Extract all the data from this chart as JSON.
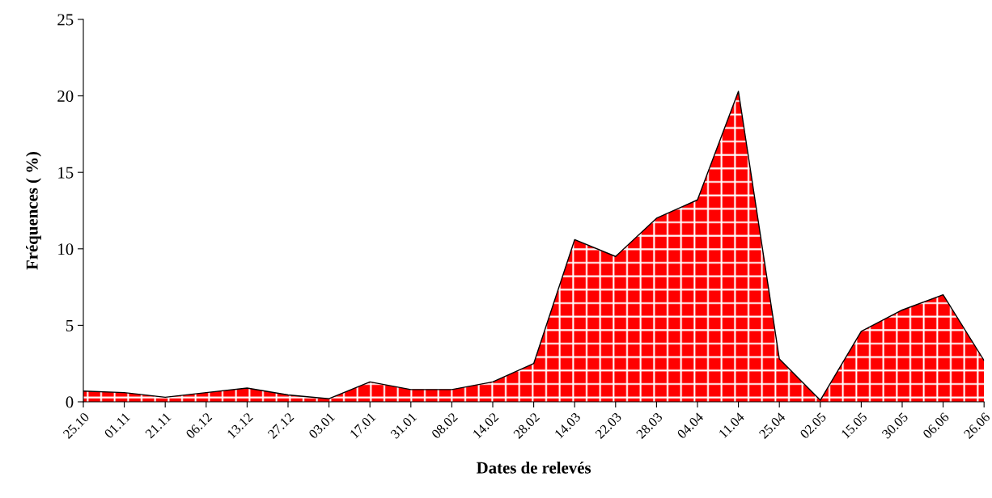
{
  "chart_data": {
    "type": "area",
    "xlabel": "Dates de relevés",
    "ylabel": "Fréquences ( %)",
    "categories": [
      "25.10",
      "01.11",
      "21.11",
      "06.12",
      "13.12",
      "27.12",
      "03.01",
      "17.01",
      "31.01",
      "08.02",
      "14.02",
      "28.02",
      "14.03",
      "22.03",
      "28.03",
      "04.04",
      "11.04",
      "25.04",
      "02.05",
      "15.05",
      "30.05",
      "06.06",
      "26.06"
    ],
    "series": [
      {
        "color": "#ff0000",
        "values": [
          0.7,
          0.6,
          0.3,
          0.6,
          0.9,
          0.45,
          0.2,
          1.3,
          0.8,
          0.8,
          1.3,
          2.5,
          10.6,
          9.5,
          12.0,
          13.2,
          20.3,
          2.8,
          0.1,
          4.6,
          6.0,
          7.0,
          2.7
        ]
      }
    ],
    "ylim": [
      0,
      25
    ],
    "yticks": [
      0,
      5,
      10,
      15,
      20,
      25
    ],
    "grid": false,
    "legend": false
  }
}
